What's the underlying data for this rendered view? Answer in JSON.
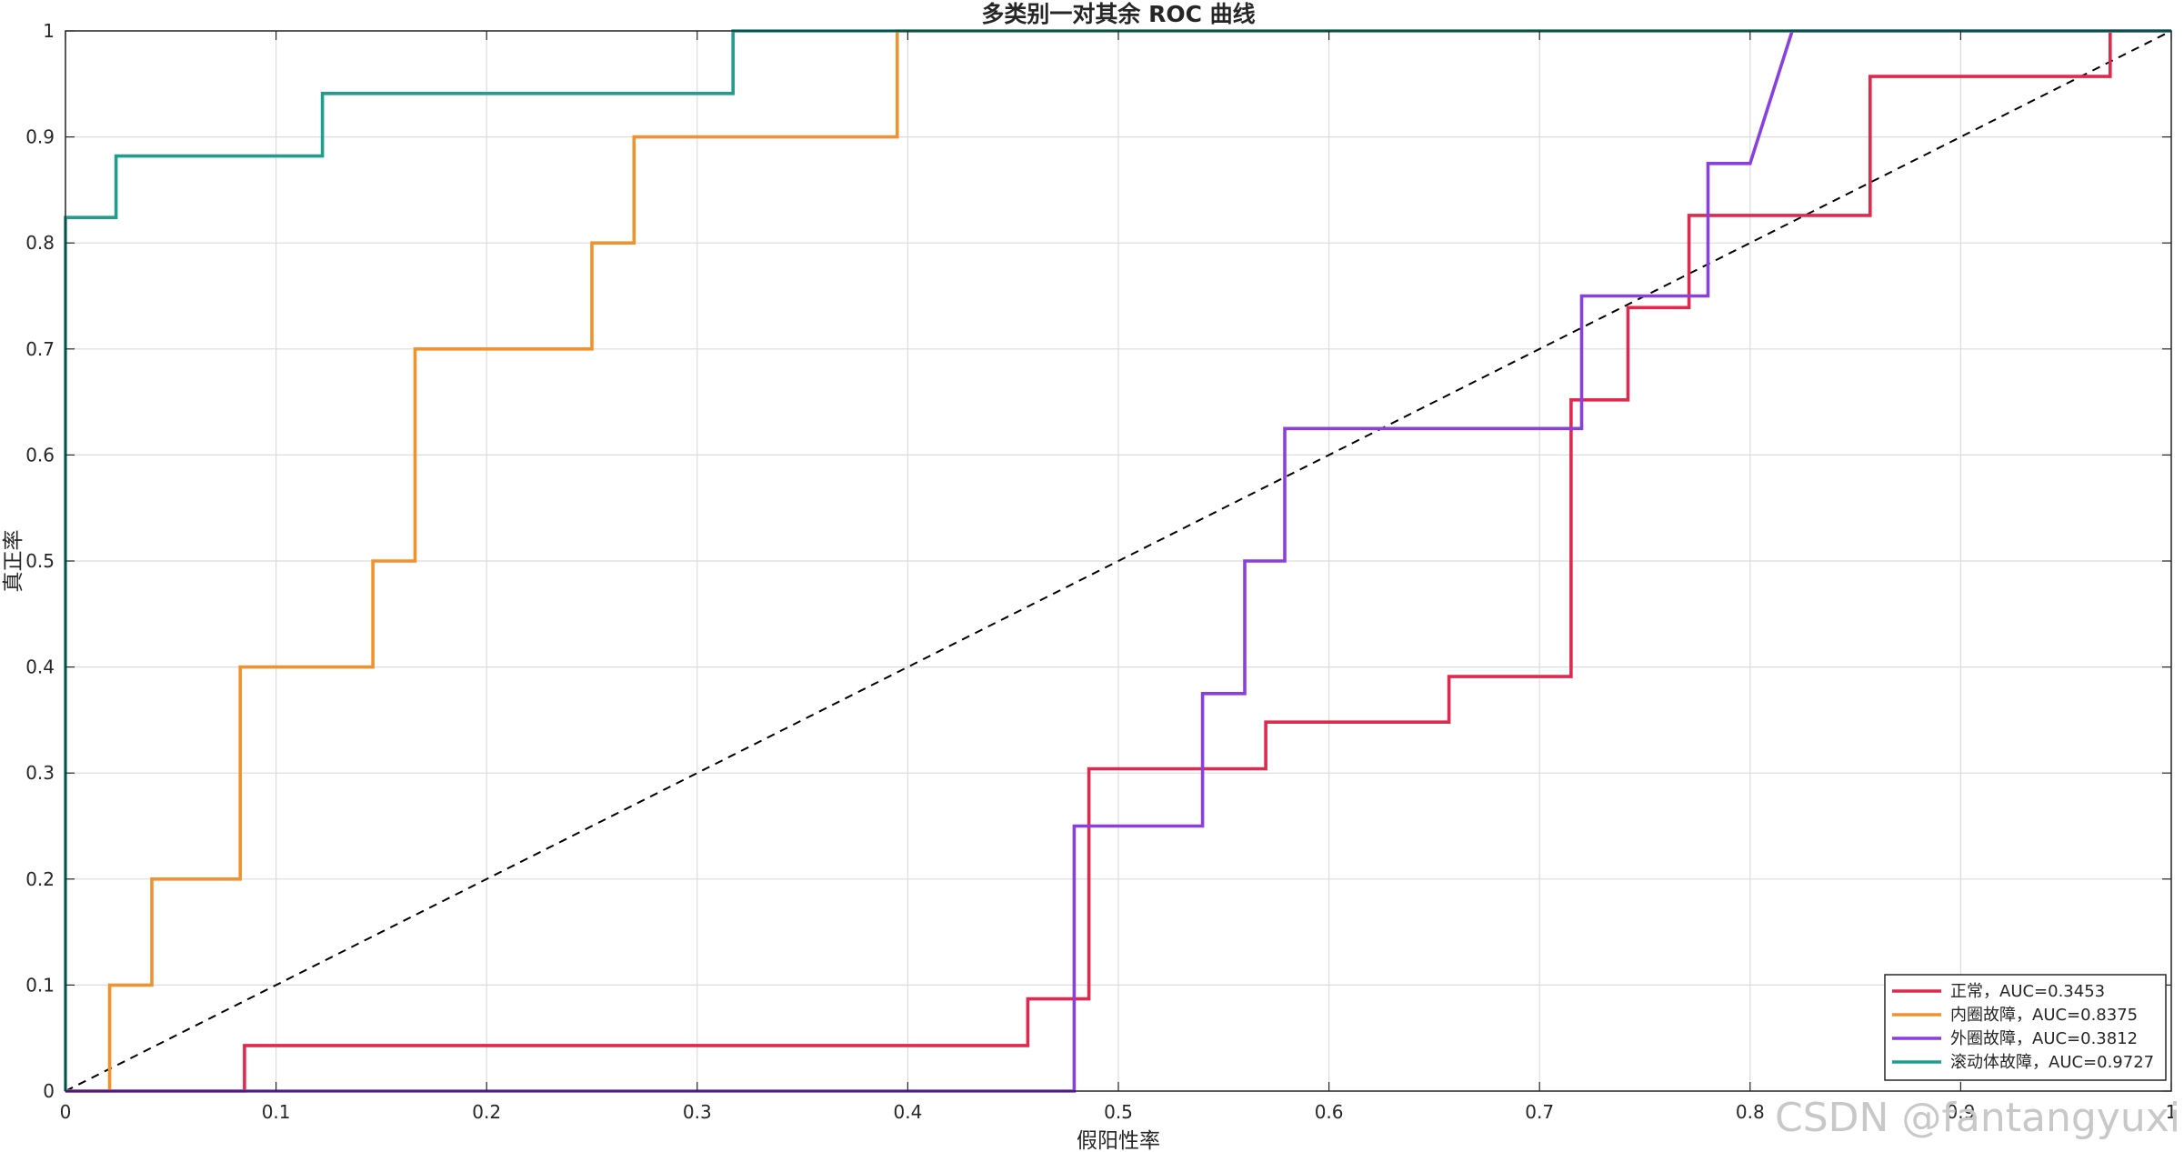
{
  "chart_data": {
    "type": "line",
    "title": "多类别一对其余 ROC 曲线",
    "xlabel": "假阳性率",
    "ylabel": "真正率",
    "xlim": [
      0,
      1
    ],
    "ylim": [
      0,
      1
    ],
    "xticks": [
      "0",
      "0.1",
      "0.2",
      "0.3",
      "0.4",
      "0.5",
      "0.6",
      "0.7",
      "0.8",
      "0.9",
      "1"
    ],
    "yticks": [
      "0",
      "0.1",
      "0.2",
      "0.3",
      "0.4",
      "0.5",
      "0.6",
      "0.7",
      "0.8",
      "0.9",
      "1"
    ],
    "grid": true,
    "legend_position": "bottom-right",
    "diagonal_reference": true,
    "series": [
      {
        "name": "正常，AUC=0.3453",
        "color": "#e0294f",
        "x": [
          0,
          0.085,
          0.085,
          0.457,
          0.457,
          0.478,
          0.478,
          0.486,
          0.486,
          0.57,
          0.57,
          0.657,
          0.657,
          0.715,
          0.715,
          0.742,
          0.742,
          0.771,
          0.771,
          0.857,
          0.857,
          0.971,
          0.971,
          1.0
        ],
        "y": [
          0,
          0,
          0.043,
          0.043,
          0.087,
          0.087,
          0.087,
          0.087,
          0.304,
          0.304,
          0.348,
          0.348,
          0.391,
          0.391,
          0.652,
          0.652,
          0.739,
          0.739,
          0.826,
          0.826,
          0.957,
          0.957,
          1.0,
          1.0
        ]
      },
      {
        "name": "内圈故障，AUC=0.8375",
        "color": "#f0922e",
        "x": [
          0,
          0.021,
          0.021,
          0.041,
          0.041,
          0.083,
          0.083,
          0.146,
          0.146,
          0.166,
          0.166,
          0.25,
          0.25,
          0.27,
          0.27,
          0.395,
          0.395,
          1.0
        ],
        "y": [
          0,
          0,
          0.1,
          0.1,
          0.2,
          0.2,
          0.4,
          0.4,
          0.5,
          0.5,
          0.7,
          0.7,
          0.8,
          0.8,
          0.9,
          0.9,
          1.0,
          1.0
        ]
      },
      {
        "name": "外圈故障，AUC=0.3812",
        "color": "#8a3fe0",
        "x": [
          0,
          0.479,
          0.479,
          0.54,
          0.54,
          0.56,
          0.56,
          0.579,
          0.579,
          0.72,
          0.72,
          0.78,
          0.78,
          0.8,
          0.82,
          1.0
        ],
        "y": [
          0,
          0,
          0.25,
          0.25,
          0.375,
          0.375,
          0.5,
          0.5,
          0.625,
          0.625,
          0.75,
          0.75,
          0.875,
          0.875,
          1.0,
          1.0
        ]
      },
      {
        "name": "滚动体故障，AUC=0.9727",
        "color": "#1f9e8f",
        "x": [
          0,
          0,
          0.024,
          0.024,
          0.122,
          0.122,
          0.317,
          0.317,
          1.0
        ],
        "y": [
          0,
          0.824,
          0.824,
          0.882,
          0.882,
          0.941,
          0.941,
          1.0,
          1.0
        ]
      }
    ]
  },
  "watermark": "CSDN @fantangyuxi"
}
